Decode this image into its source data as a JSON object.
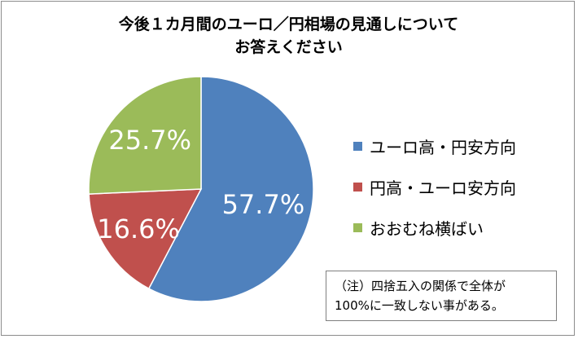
{
  "chart_data": {
    "type": "pie",
    "title_lines": [
      "今後１カ月間のユーロ／円相場の見通しについて",
      "お答えください"
    ],
    "slices": [
      {
        "name": "ユーロ高・円安方向",
        "value": 57.7,
        "label": "57.7%",
        "color": "#4f81bd"
      },
      {
        "name": "円高・ユーロ安方向",
        "value": 16.6,
        "label": "16.6%",
        "color": "#c0504d"
      },
      {
        "name": "おおむね横ばい",
        "value": 25.7,
        "label": "25.7%",
        "color": "#9bbb59"
      }
    ],
    "legend_position": "right",
    "note_lines": [
      "（注）四捨五入の関係で全体が",
      "100%に一致しない事がある。"
    ]
  }
}
